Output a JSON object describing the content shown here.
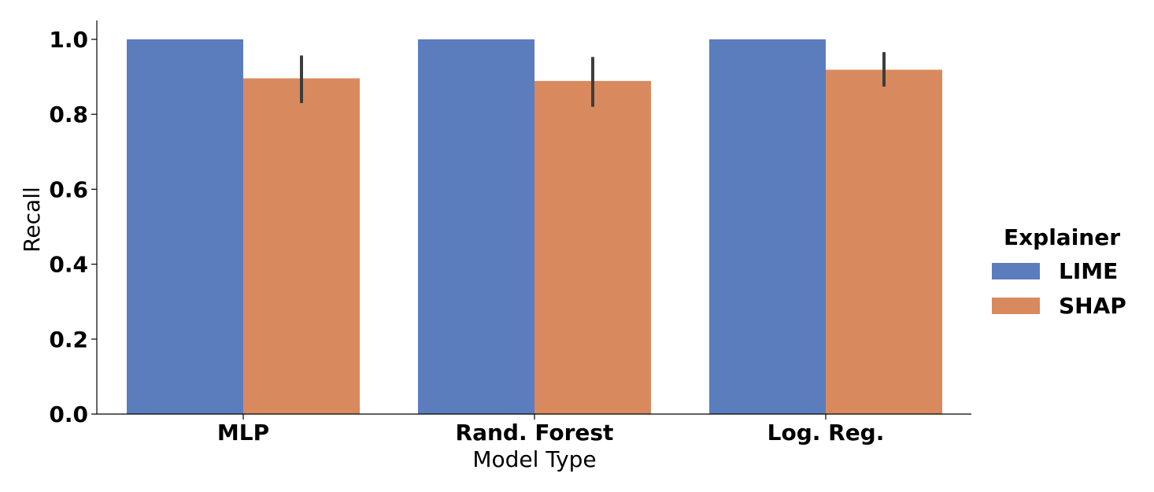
{
  "chart_data": {
    "type": "bar",
    "title": "",
    "xlabel": "Model Type",
    "ylabel": "Recall",
    "ylim": [
      0,
      1.05
    ],
    "yticks": [
      "0.0",
      "0.2",
      "0.4",
      "0.6",
      "0.8",
      "1.0"
    ],
    "ytick_values": [
      0,
      0.2,
      0.4,
      0.6,
      0.8,
      1.0
    ],
    "categories": [
      "MLP",
      "Rand. Forest",
      "Log. Reg."
    ],
    "legend": {
      "title": "Explainer",
      "placement": "right"
    },
    "series": [
      {
        "name": "LIME",
        "color": "#5b7dbe",
        "values": [
          1.0,
          1.0,
          1.0
        ],
        "error_low": [
          null,
          null,
          null
        ],
        "error_high": [
          null,
          null,
          null
        ]
      },
      {
        "name": "SHAP",
        "color": "#d88a5e",
        "values": [
          0.896,
          0.889,
          0.919
        ],
        "error_low": [
          0.83,
          0.82,
          0.874
        ],
        "error_high": [
          0.957,
          0.953,
          0.966
        ]
      }
    ],
    "error_bar_color": "#3d3d3d",
    "grid": false
  }
}
